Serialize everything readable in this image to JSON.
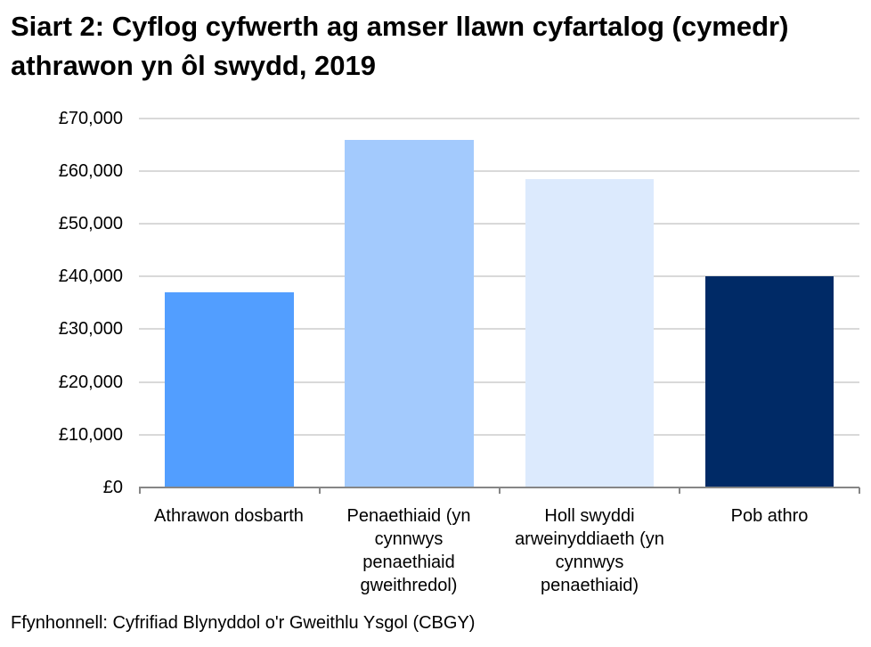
{
  "title": "Siart 2: Cyflog cyfwerth ag amser llawn cyfartalog (cymedr) athrawon yn ôl swydd, 2019",
  "source": "Ffynhonnell: Cyfrifiad Blynyddol o'r Gweithlu Ysgol (CBGY)",
  "y_ticks": [
    "£70,000",
    "£60,000",
    "£50,000",
    "£40,000",
    "£30,000",
    "£20,000",
    "£10,000",
    "£0"
  ],
  "x_labels": [
    [
      "Athrawon dosbarth"
    ],
    [
      "Penaethiaid (yn",
      "cynnwys",
      "penaethiaid",
      "gweithredol)"
    ],
    [
      "Holl swyddi",
      "arweinyddiaeth (yn",
      "cynnwys",
      "penaethiaid)"
    ],
    [
      "Pob athro"
    ]
  ],
  "colors": {
    "bar_1": "#529EFF",
    "bar_2": "#A3CAFD",
    "bar_3": "#DCEAFD",
    "bar_4": "#002A66",
    "grid": "#D9D9D9",
    "axis": "#868686"
  },
  "chart_data": {
    "type": "bar",
    "title": "Siart 2: Cyflog cyfwerth ag amser llawn cyfartalog (cymedr) athrawon yn ôl swydd, 2019",
    "categories": [
      "Athrawon dosbarth",
      "Penaethiaid (yn cynnwys penaethiaid gweithredol)",
      "Holl swyddi arweinyddiaeth (yn cynnwys penaethiaid)",
      "Pob athro"
    ],
    "values": [
      37000,
      65900,
      58500,
      40000
    ],
    "xlabel": "",
    "ylabel": "",
    "ylim": [
      0,
      70000
    ],
    "y_tick_step": 10000,
    "y_tick_format": "£#,##0",
    "grid": true,
    "legend": null,
    "source": "Ffynhonnell: Cyfrifiad Blynyddol o'r Gweithlu Ysgol (CBGY)"
  }
}
